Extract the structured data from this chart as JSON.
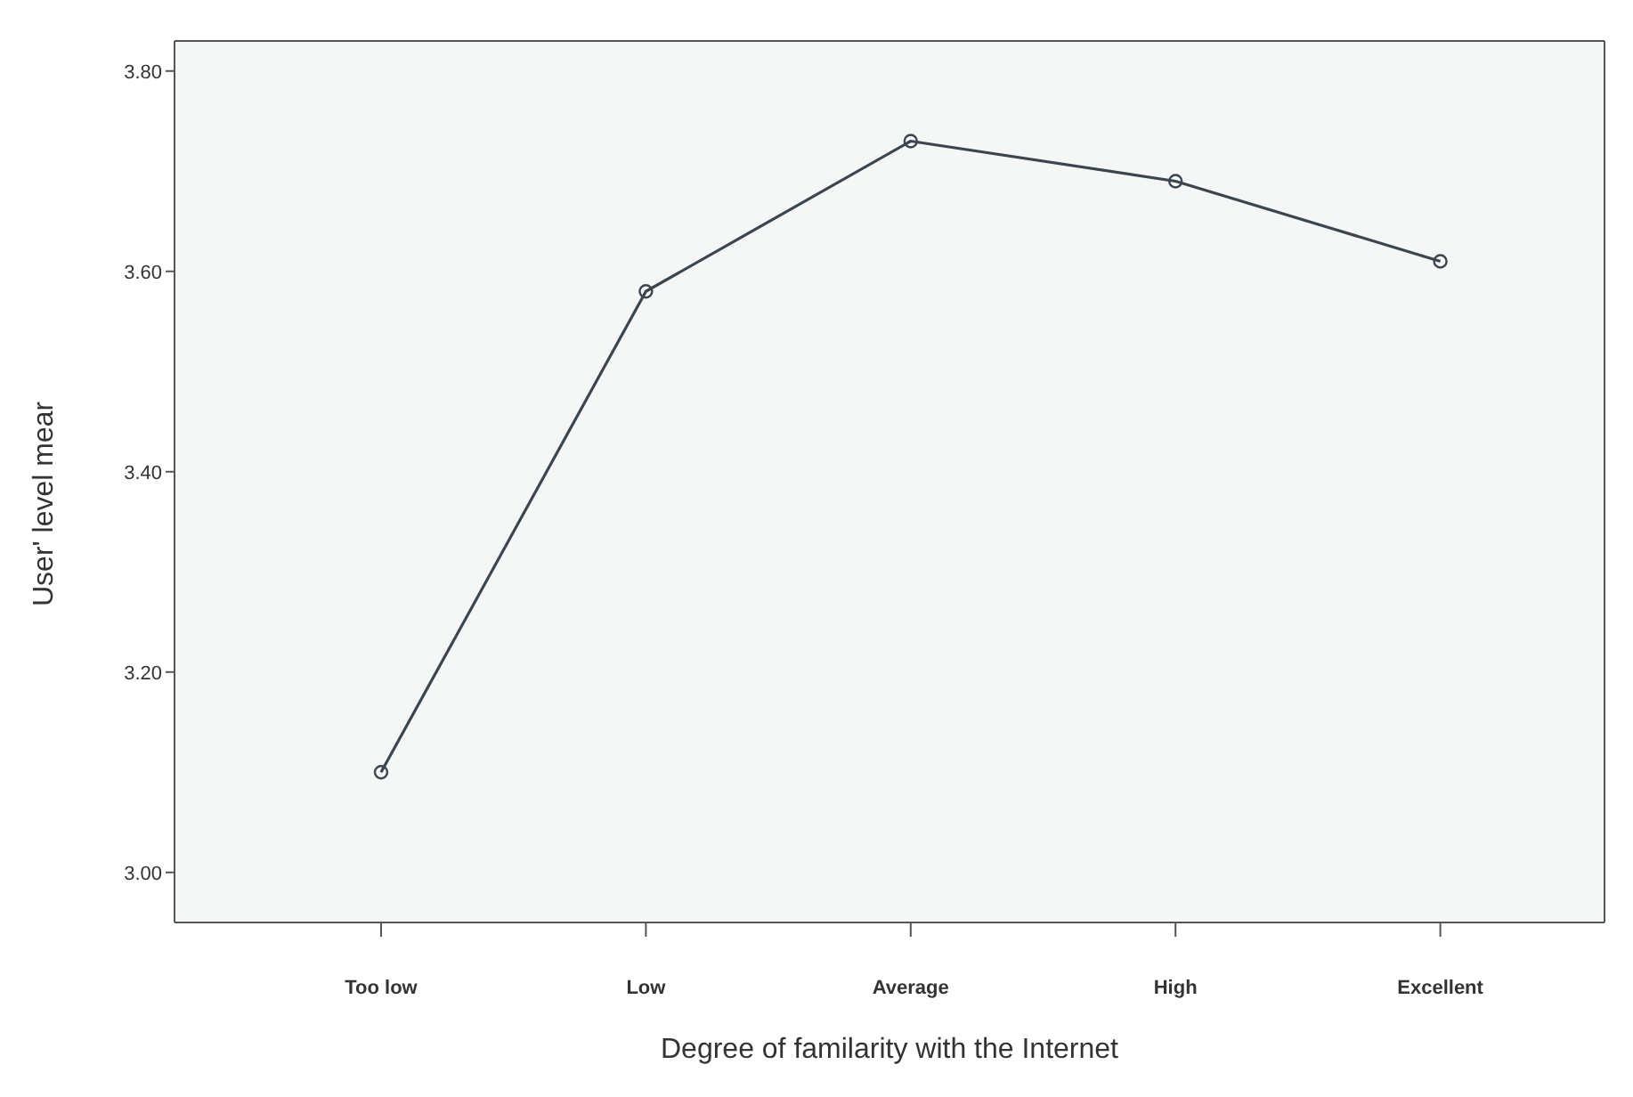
{
  "chart_data": {
    "type": "line",
    "xlabel": "Degree of familarity with the Internet",
    "ylabel": "User' level mear",
    "categories": [
      "Too low",
      "Low",
      "Average",
      "High",
      "Excellent"
    ],
    "series": [
      {
        "color": "#3a4550",
        "values": [
          3.1,
          3.58,
          3.73,
          3.69,
          3.61
        ]
      }
    ],
    "ylim": [
      2.95,
      3.83
    ],
    "yticks": [
      {
        "value": 3,
        "label": "3.00"
      },
      {
        "value": 3.2,
        "label": "3.20"
      },
      {
        "value": 3.4,
        "label": "3.40"
      },
      {
        "value": 3.6,
        "label": "3.60"
      },
      {
        "value": 3.8,
        "label": "3.80"
      }
    ],
    "legend": false,
    "marker": "circle",
    "line_style": "solid"
  }
}
